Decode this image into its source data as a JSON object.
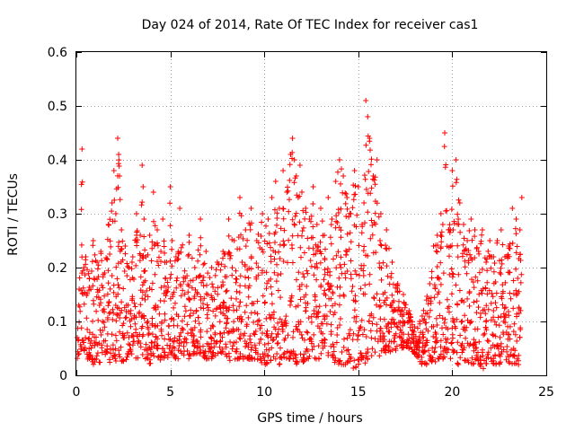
{
  "chart_data": {
    "type": "scatter",
    "title": "Day 024 of 2014, Rate Of TEC Index for receiver cas1",
    "xlabel": "GPS time / hours",
    "ylabel": "ROTI / TECUs",
    "xlim": [
      0,
      25
    ],
    "ylim": [
      0,
      0.6
    ],
    "xticks": [
      0,
      5,
      10,
      15,
      20,
      25
    ],
    "xtick_labels": [
      "0",
      "5",
      "10",
      "15",
      "20",
      "25"
    ],
    "yticks": [
      0,
      0.1,
      0.2,
      0.3,
      0.4,
      0.5,
      0.6
    ],
    "ytick_labels": [
      "0",
      "0.1",
      "0.2",
      "0.3",
      "0.4",
      "0.5",
      "0.6"
    ],
    "grid": true,
    "marker": "plus",
    "color": "#ff0000",
    "envelope_description": "dense point cloud; ROTI mostly 0.01-0.3 TECU with bursts near 2h, 3.5h, 11-12h, 15-16h and 19.5-20.5h; gap around 18h",
    "series": [
      {
        "name": "cas1",
        "x": [
          0.05,
          0.15,
          0.3,
          0.4,
          0.5,
          0.7,
          0.9,
          1.1,
          1.3,
          1.5,
          1.7,
          1.9,
          2.0,
          2.1,
          2.2,
          2.25,
          2.3,
          2.4,
          2.6,
          2.8,
          3.0,
          3.2,
          3.4,
          3.5,
          3.55,
          3.6,
          3.7,
          3.9,
          4.1,
          4.3,
          4.5,
          4.6,
          4.8,
          5.0,
          5.1,
          5.3,
          5.5,
          5.8,
          6.0,
          6.3,
          6.6,
          6.9,
          7.2,
          7.5,
          7.8,
          8.1,
          8.4,
          8.7,
          9.0,
          9.3,
          9.6,
          9.9,
          10.2,
          10.4,
          10.6,
          10.8,
          11.0,
          11.2,
          11.4,
          11.5,
          11.6,
          11.7,
          11.8,
          11.9,
          12.0,
          12.2,
          12.4,
          12.6,
          12.8,
          13.0,
          13.2,
          13.4,
          13.6,
          13.8,
          14.0,
          14.2,
          14.4,
          14.6,
          14.8,
          15.0,
          15.2,
          15.3,
          15.4,
          15.5,
          15.6,
          15.8,
          16.0,
          16.2,
          16.5,
          16.8,
          17.1,
          17.4,
          17.7,
          18.0,
          18.4,
          18.8,
          19.0,
          19.2,
          19.4,
          19.5,
          19.6,
          19.8,
          20.0,
          20.2,
          20.4,
          20.6,
          20.8,
          21.0,
          21.2,
          21.4,
          21.6,
          21.8,
          22.0,
          22.2,
          22.4,
          22.6,
          22.8,
          23.0,
          23.2,
          23.4,
          23.6,
          23.7
        ],
        "y": [
          0.07,
          0.16,
          0.42,
          0.2,
          0.22,
          0.18,
          0.25,
          0.21,
          0.23,
          0.19,
          0.28,
          0.32,
          0.38,
          0.3,
          0.44,
          0.41,
          0.37,
          0.27,
          0.24,
          0.2,
          0.22,
          0.3,
          0.26,
          0.39,
          0.35,
          0.29,
          0.22,
          0.26,
          0.34,
          0.27,
          0.23,
          0.29,
          0.21,
          0.35,
          0.25,
          0.22,
          0.31,
          0.18,
          0.26,
          0.2,
          0.29,
          0.23,
          0.2,
          0.21,
          0.23,
          0.29,
          0.25,
          0.33,
          0.27,
          0.31,
          0.25,
          0.3,
          0.29,
          0.33,
          0.36,
          0.31,
          0.38,
          0.34,
          0.41,
          0.44,
          0.4,
          0.37,
          0.33,
          0.39,
          0.34,
          0.31,
          0.29,
          0.35,
          0.28,
          0.31,
          0.26,
          0.33,
          0.29,
          0.36,
          0.4,
          0.37,
          0.33,
          0.3,
          0.38,
          0.35,
          0.28,
          0.32,
          0.51,
          0.48,
          0.44,
          0.37,
          0.4,
          0.3,
          0.27,
          0.21,
          0.17,
          0.15,
          0.12,
          0.09,
          0.11,
          0.17,
          0.24,
          0.26,
          0.3,
          0.28,
          0.45,
          0.27,
          0.38,
          0.4,
          0.32,
          0.28,
          0.25,
          0.29,
          0.27,
          0.23,
          0.27,
          0.21,
          0.25,
          0.22,
          0.25,
          0.27,
          0.22,
          0.24,
          0.31,
          0.29,
          0.27,
          0.33
        ],
        "y_floor": [
          0.03,
          0.04,
          0.05,
          0.04,
          0.03,
          0.03,
          0.02,
          0.03,
          0.02,
          0.03,
          0.02,
          0.03,
          0.03,
          0.02,
          0.03,
          0.03,
          0.03,
          0.02,
          0.03,
          0.02,
          0.04,
          0.03,
          0.03,
          0.03,
          0.03,
          0.03,
          0.03,
          0.02,
          0.03,
          0.03,
          0.02,
          0.03,
          0.03,
          0.04,
          0.04,
          0.03,
          0.03,
          0.04,
          0.03,
          0.04,
          0.04,
          0.03,
          0.03,
          0.04,
          0.04,
          0.03,
          0.02,
          0.03,
          0.03,
          0.03,
          0.03,
          0.02,
          0.02,
          0.03,
          0.03,
          0.02,
          0.03,
          0.03,
          0.03,
          0.03,
          0.03,
          0.02,
          0.03,
          0.03,
          0.02,
          0.03,
          0.03,
          0.02,
          0.03,
          0.03,
          0.04,
          0.03,
          0.03,
          0.02,
          0.02,
          0.02,
          0.02,
          0.01,
          0.01,
          0.02,
          0.03,
          0.02,
          0.02,
          0.03,
          0.03,
          0.03,
          0.03,
          0.04,
          0.04,
          0.04,
          0.05,
          0.05,
          0.05,
          0.04,
          0.02,
          0.02,
          0.03,
          0.02,
          0.03,
          0.03,
          0.03,
          0.03,
          0.03,
          0.02,
          0.02,
          0.03,
          0.02,
          0.02,
          0.02,
          0.02,
          0.01,
          0.02,
          0.02,
          0.02,
          0.02,
          0.02,
          0.02,
          0.02,
          0.02,
          0.02,
          0.02,
          0.03
        ]
      }
    ]
  }
}
